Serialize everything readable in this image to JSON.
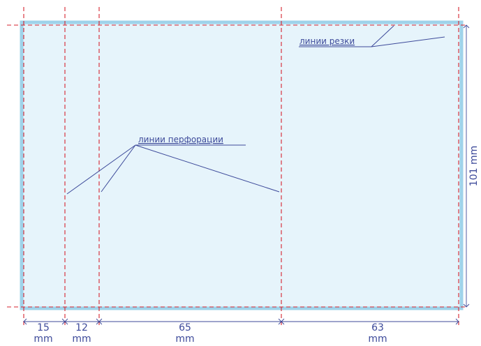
{
  "labels": {
    "cut_lines": "линии резки",
    "perforation_lines": "линии перфорации"
  },
  "dimensions": {
    "segments": [
      {
        "value": "15",
        "unit": "mm"
      },
      {
        "value": "12",
        "unit": "mm"
      },
      {
        "value": "65",
        "unit": "mm"
      },
      {
        "value": "63",
        "unit": "mm"
      }
    ],
    "height": "101 mm"
  },
  "colors": {
    "sheet_fill": "#e6f4fb",
    "sheet_border": "#9fd3ea",
    "guide_lines": "#d6232f",
    "annotation": "#3d4a9a"
  }
}
